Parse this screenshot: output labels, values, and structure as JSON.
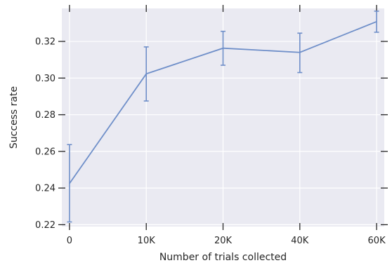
{
  "chart_data": {
    "type": "line",
    "title": "",
    "xlabel": "Number of trials collected",
    "ylabel": "Success rate",
    "categories": [
      "0",
      "10K",
      "20K",
      "40K",
      "60K"
    ],
    "series": [
      {
        "values": [
          0.2425,
          0.3023,
          0.3163,
          0.314,
          0.3308
        ],
        "error_low": [
          0.2215,
          0.2875,
          0.307,
          0.303,
          0.325
        ],
        "error_high": [
          0.2637,
          0.317,
          0.3255,
          0.3245,
          0.3365
        ]
      }
    ],
    "ylim": [
      0.219,
      0.338
    ],
    "yticks": [
      0.22,
      0.24,
      0.26,
      0.28,
      0.3,
      0.32
    ],
    "ytick_labels": [
      "0.22",
      "0.24",
      "0.26",
      "0.28",
      "0.30",
      "0.32"
    ],
    "grid": true,
    "colors": {
      "line": "#6f8fc9",
      "background": "#eaeaf2",
      "grid": "#ffffff",
      "tick": "#262626"
    }
  }
}
